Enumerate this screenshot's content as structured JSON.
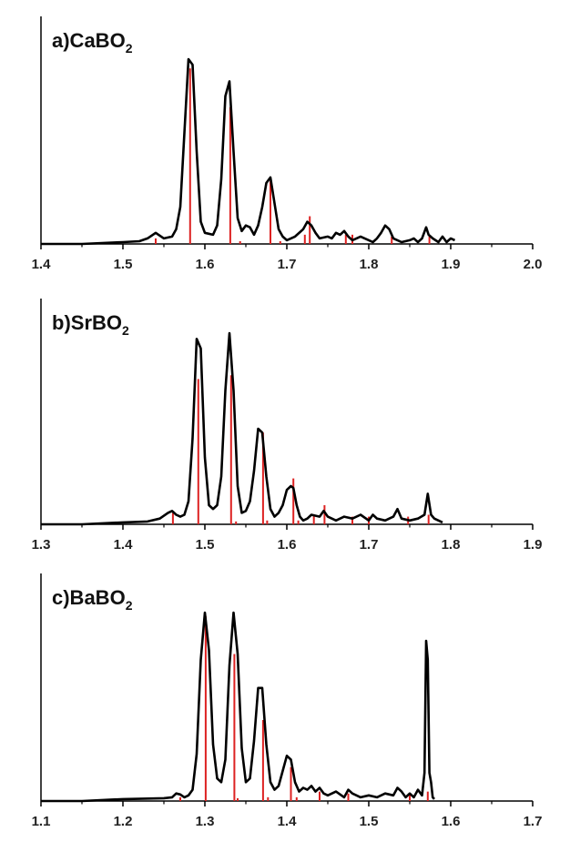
{
  "chart_data": [
    {
      "type": "line",
      "title": "a)CaBO",
      "title_sub": "2",
      "xlim": [
        1.4,
        2.0
      ],
      "xticks": [
        "1.4",
        "1.5",
        "1.6",
        "1.7",
        "1.8",
        "1.9",
        "2.0"
      ],
      "ylim": [
        0,
        1
      ],
      "series": [
        {
          "color": "#000000",
          "x": [
            1.4,
            1.45,
            1.5,
            1.52,
            1.53,
            1.54,
            1.55,
            1.56,
            1.565,
            1.57,
            1.575,
            1.58,
            1.585,
            1.59,
            1.595,
            1.6,
            1.61,
            1.615,
            1.62,
            1.625,
            1.63,
            1.635,
            1.64,
            1.645,
            1.65,
            1.655,
            1.66,
            1.665,
            1.67,
            1.675,
            1.68,
            1.685,
            1.69,
            1.695,
            1.7,
            1.71,
            1.72,
            1.725,
            1.73,
            1.735,
            1.74,
            1.75,
            1.755,
            1.76,
            1.765,
            1.77,
            1.775,
            1.78,
            1.79,
            1.8,
            1.805,
            1.81,
            1.815,
            1.82,
            1.825,
            1.83,
            1.84,
            1.85,
            1.855,
            1.86,
            1.865,
            1.87,
            1.873,
            1.878,
            1.885,
            1.89,
            1.895,
            1.9,
            1.905
          ],
          "y": [
            0.0,
            0.0,
            0.01,
            0.015,
            0.03,
            0.06,
            0.03,
            0.04,
            0.08,
            0.2,
            0.6,
            1.0,
            0.97,
            0.5,
            0.12,
            0.06,
            0.05,
            0.1,
            0.35,
            0.8,
            0.88,
            0.5,
            0.14,
            0.07,
            0.1,
            0.09,
            0.05,
            0.1,
            0.2,
            0.33,
            0.36,
            0.22,
            0.08,
            0.04,
            0.02,
            0.04,
            0.08,
            0.12,
            0.1,
            0.06,
            0.03,
            0.04,
            0.03,
            0.06,
            0.05,
            0.07,
            0.04,
            0.02,
            0.04,
            0.02,
            0.01,
            0.03,
            0.06,
            0.1,
            0.08,
            0.03,
            0.01,
            0.02,
            0.03,
            0.01,
            0.03,
            0.09,
            0.05,
            0.03,
            0.01,
            0.04,
            0.01,
            0.03,
            0.02
          ]
        }
      ],
      "sticks": {
        "color": "#dd2222",
        "x": [
          1.54,
          1.582,
          1.631,
          1.643,
          1.68,
          1.692,
          1.722,
          1.728,
          1.772,
          1.78,
          1.828,
          1.874
        ],
        "y": [
          0.03,
          0.95,
          0.74,
          0.015,
          0.34,
          0.015,
          0.05,
          0.15,
          0.05,
          0.05,
          0.04,
          0.04
        ]
      }
    },
    {
      "type": "line",
      "title": "b)SrBO",
      "title_sub": "2",
      "xlim": [
        1.3,
        1.9
      ],
      "xticks": [
        "1.3",
        "1.4",
        "1.5",
        "1.6",
        "1.7",
        "1.8",
        "1.9"
      ],
      "ylim": [
        0,
        1
      ],
      "series": [
        {
          "color": "#000000",
          "x": [
            1.3,
            1.35,
            1.4,
            1.43,
            1.445,
            1.455,
            1.46,
            1.465,
            1.47,
            1.475,
            1.48,
            1.485,
            1.49,
            1.495,
            1.5,
            1.505,
            1.51,
            1.515,
            1.52,
            1.525,
            1.53,
            1.535,
            1.54,
            1.545,
            1.55,
            1.555,
            1.56,
            1.565,
            1.57,
            1.575,
            1.58,
            1.585,
            1.59,
            1.595,
            1.6,
            1.605,
            1.608,
            1.612,
            1.616,
            1.62,
            1.625,
            1.63,
            1.64,
            1.645,
            1.65,
            1.66,
            1.67,
            1.68,
            1.69,
            1.7,
            1.705,
            1.71,
            1.72,
            1.725,
            1.73,
            1.735,
            1.74,
            1.75,
            1.76,
            1.768,
            1.772,
            1.776,
            1.78,
            1.785,
            1.79
          ],
          "y": [
            0.0,
            0.0,
            0.01,
            0.015,
            0.03,
            0.06,
            0.07,
            0.05,
            0.04,
            0.05,
            0.12,
            0.45,
            0.97,
            0.92,
            0.35,
            0.1,
            0.08,
            0.1,
            0.25,
            0.7,
            1.0,
            0.7,
            0.2,
            0.06,
            0.07,
            0.12,
            0.28,
            0.5,
            0.48,
            0.25,
            0.08,
            0.04,
            0.06,
            0.1,
            0.18,
            0.2,
            0.19,
            0.1,
            0.04,
            0.02,
            0.03,
            0.05,
            0.04,
            0.07,
            0.04,
            0.02,
            0.04,
            0.03,
            0.05,
            0.02,
            0.05,
            0.03,
            0.02,
            0.03,
            0.04,
            0.08,
            0.03,
            0.02,
            0.03,
            0.05,
            0.16,
            0.05,
            0.03,
            0.02,
            0.01
          ]
        }
      ],
      "sticks": {
        "color": "#dd2222",
        "x": [
          1.461,
          1.492,
          1.532,
          1.538,
          1.571,
          1.576,
          1.608,
          1.614,
          1.633,
          1.646,
          1.68,
          1.7,
          1.748,
          1.773
        ],
        "y": [
          0.06,
          0.76,
          0.78,
          0.015,
          0.48,
          0.02,
          0.24,
          0.02,
          0.05,
          0.1,
          0.04,
          0.04,
          0.04,
          0.05
        ]
      }
    },
    {
      "type": "line",
      "title": "c)BaBO",
      "title_sub": "2",
      "xlim": [
        1.1,
        1.7
      ],
      "xticks": [
        "1.1",
        "1.2",
        "1.3",
        "1.4",
        "1.5",
        "1.6",
        "1.7"
      ],
      "ylim": [
        0,
        1
      ],
      "series": [
        {
          "color": "#000000",
          "x": [
            1.1,
            1.15,
            1.2,
            1.25,
            1.26,
            1.265,
            1.27,
            1.275,
            1.28,
            1.285,
            1.29,
            1.295,
            1.3,
            1.305,
            1.31,
            1.315,
            1.32,
            1.325,
            1.33,
            1.335,
            1.34,
            1.345,
            1.35,
            1.355,
            1.36,
            1.365,
            1.37,
            1.375,
            1.38,
            1.385,
            1.39,
            1.395,
            1.4,
            1.405,
            1.41,
            1.415,
            1.42,
            1.425,
            1.43,
            1.435,
            1.44,
            1.445,
            1.45,
            1.46,
            1.47,
            1.475,
            1.48,
            1.49,
            1.5,
            1.51,
            1.52,
            1.53,
            1.535,
            1.54,
            1.545,
            1.55,
            1.555,
            1.56,
            1.565,
            1.568,
            1.57,
            1.572,
            1.574,
            1.576,
            1.578,
            1.58
          ],
          "y": [
            0.0,
            0.0,
            0.01,
            0.015,
            0.02,
            0.04,
            0.035,
            0.02,
            0.03,
            0.06,
            0.25,
            0.75,
            1.0,
            0.8,
            0.3,
            0.12,
            0.1,
            0.22,
            0.72,
            1.0,
            0.78,
            0.28,
            0.1,
            0.12,
            0.32,
            0.6,
            0.6,
            0.3,
            0.1,
            0.06,
            0.08,
            0.16,
            0.24,
            0.22,
            0.1,
            0.05,
            0.07,
            0.06,
            0.08,
            0.05,
            0.07,
            0.04,
            0.03,
            0.05,
            0.02,
            0.06,
            0.04,
            0.02,
            0.03,
            0.02,
            0.04,
            0.03,
            0.07,
            0.05,
            0.02,
            0.04,
            0.02,
            0.06,
            0.03,
            0.15,
            0.85,
            0.75,
            0.15,
            0.1,
            0.02,
            0.01
          ]
        }
      ],
      "sticks": {
        "color": "#dd2222",
        "x": [
          1.27,
          1.301,
          1.336,
          1.34,
          1.371,
          1.377,
          1.405,
          1.412,
          1.44,
          1.475,
          1.55,
          1.572
        ],
        "y": [
          0.02,
          0.98,
          0.78,
          0.015,
          0.43,
          0.02,
          0.18,
          0.02,
          0.05,
          0.04,
          0.04,
          0.05
        ]
      }
    }
  ]
}
